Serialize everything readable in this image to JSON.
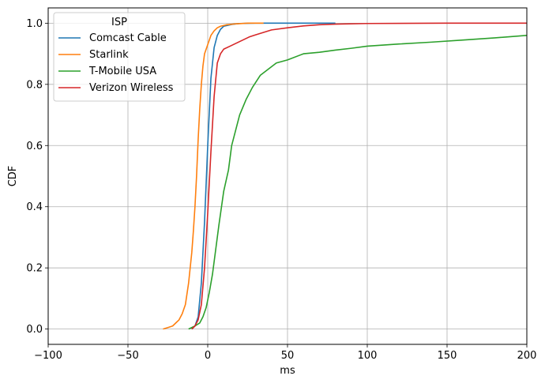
{
  "chart_data": {
    "type": "line",
    "title": "",
    "xlabel": "ms",
    "ylabel": "CDF",
    "xlim": [
      -100,
      200
    ],
    "ylim": [
      -0.05,
      1.05
    ],
    "xticks": [
      -100,
      -50,
      0,
      50,
      100,
      150,
      200
    ],
    "xtick_labels": [
      "−100",
      "−50",
      "0",
      "50",
      "100",
      "150",
      "200"
    ],
    "yticks": [
      0.0,
      0.2,
      0.4,
      0.6,
      0.8,
      1.0
    ],
    "ytick_labels": [
      "0.0",
      "0.2",
      "0.4",
      "0.6",
      "0.8",
      "1.0"
    ],
    "grid": true,
    "legend": {
      "title": "ISP",
      "placement": "top-left"
    },
    "series": [
      {
        "name": "Comcast Cable",
        "color": "#1f77b4",
        "points": [
          [
            -10,
            0.0
          ],
          [
            -8,
            0.01
          ],
          [
            -6,
            0.04
          ],
          [
            -4,
            0.15
          ],
          [
            -2,
            0.35
          ],
          [
            0,
            0.6
          ],
          [
            2,
            0.82
          ],
          [
            4,
            0.92
          ],
          [
            6,
            0.96
          ],
          [
            8,
            0.98
          ],
          [
            10,
            0.99
          ],
          [
            15,
            0.996
          ],
          [
            20,
            0.999
          ],
          [
            30,
            1.0
          ],
          [
            50,
            1.0
          ],
          [
            80,
            1.0
          ]
        ]
      },
      {
        "name": "Starlink",
        "color": "#ff7f0e",
        "points": [
          [
            -28,
            0.0
          ],
          [
            -25,
            0.005
          ],
          [
            -22,
            0.01
          ],
          [
            -20,
            0.02
          ],
          [
            -18,
            0.03
          ],
          [
            -16,
            0.05
          ],
          [
            -14,
            0.08
          ],
          [
            -12,
            0.15
          ],
          [
            -11,
            0.2
          ],
          [
            -10,
            0.25
          ],
          [
            -9,
            0.32
          ],
          [
            -8,
            0.4
          ],
          [
            -7,
            0.5
          ],
          [
            -6,
            0.62
          ],
          [
            -5,
            0.72
          ],
          [
            -4,
            0.8
          ],
          [
            -3,
            0.86
          ],
          [
            -2,
            0.9
          ],
          [
            0,
            0.93
          ],
          [
            2,
            0.96
          ],
          [
            4,
            0.975
          ],
          [
            6,
            0.985
          ],
          [
            8,
            0.99
          ],
          [
            12,
            0.995
          ],
          [
            18,
            0.998
          ],
          [
            25,
            1.0
          ],
          [
            35,
            1.0
          ]
        ]
      },
      {
        "name": "T-Mobile USA",
        "color": "#2ca02c",
        "points": [
          [
            -12,
            0.0
          ],
          [
            -8,
            0.01
          ],
          [
            -5,
            0.02
          ],
          [
            -3,
            0.04
          ],
          [
            -1,
            0.07
          ],
          [
            1,
            0.12
          ],
          [
            3,
            0.18
          ],
          [
            5,
            0.26
          ],
          [
            7,
            0.34
          ],
          [
            10,
            0.45
          ],
          [
            13,
            0.52
          ],
          [
            15,
            0.6
          ],
          [
            18,
            0.66
          ],
          [
            20,
            0.7
          ],
          [
            24,
            0.75
          ],
          [
            28,
            0.79
          ],
          [
            33,
            0.83
          ],
          [
            38,
            0.85
          ],
          [
            43,
            0.87
          ],
          [
            50,
            0.88
          ],
          [
            60,
            0.9
          ],
          [
            70,
            0.905
          ],
          [
            80,
            0.912
          ],
          [
            90,
            0.918
          ],
          [
            100,
            0.925
          ],
          [
            120,
            0.932
          ],
          [
            140,
            0.938
          ],
          [
            160,
            0.945
          ],
          [
            180,
            0.952
          ],
          [
            200,
            0.96
          ]
        ]
      },
      {
        "name": "Verizon Wireless",
        "color": "#d62728",
        "points": [
          [
            -10,
            0.0
          ],
          [
            -8,
            0.01
          ],
          [
            -6,
            0.03
          ],
          [
            -4,
            0.08
          ],
          [
            -2,
            0.2
          ],
          [
            0,
            0.38
          ],
          [
            2,
            0.58
          ],
          [
            4,
            0.76
          ],
          [
            6,
            0.87
          ],
          [
            8,
            0.9
          ],
          [
            10,
            0.915
          ],
          [
            14,
            0.925
          ],
          [
            18,
            0.935
          ],
          [
            22,
            0.945
          ],
          [
            26,
            0.955
          ],
          [
            30,
            0.962
          ],
          [
            35,
            0.97
          ],
          [
            40,
            0.978
          ],
          [
            50,
            0.985
          ],
          [
            60,
            0.991
          ],
          [
            70,
            0.995
          ],
          [
            80,
            0.997
          ],
          [
            100,
            0.999
          ],
          [
            150,
            1.0
          ],
          [
            200,
            1.0
          ]
        ]
      }
    ]
  }
}
